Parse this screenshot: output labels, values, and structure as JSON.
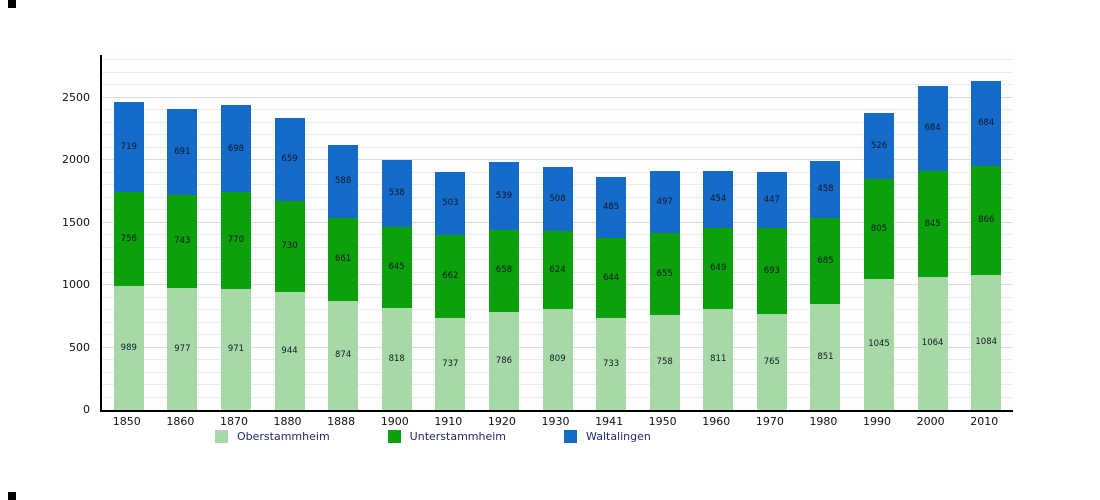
{
  "chart_data": {
    "type": "bar",
    "stacked": true,
    "title": "",
    "xlabel": "",
    "ylabel": "",
    "ylim": [
      0,
      2840
    ],
    "yticks": [
      0,
      500,
      1000,
      1500,
      2000,
      2500
    ],
    "grid": true,
    "legend_position": "bottom",
    "categories": [
      "1850",
      "1860",
      "1870",
      "1880",
      "1888",
      "1900",
      "1910",
      "1920",
      "1930",
      "1941",
      "1950",
      "1960",
      "1970",
      "1980",
      "1990",
      "2000",
      "2010"
    ],
    "series": [
      {
        "name": "Oberstammheim",
        "color": "#a6d9a6",
        "values": [
          989,
          977,
          971,
          944,
          874,
          818,
          737,
          786,
          809,
          733,
          758,
          811,
          765,
          851,
          1045,
          1064,
          1084
        ]
      },
      {
        "name": "Unterstammheim",
        "color": "#0ca00c",
        "values": [
          756,
          743,
          770,
          730,
          661,
          645,
          662,
          658,
          624,
          644,
          655,
          649,
          693,
          685,
          805,
          845,
          866
        ]
      },
      {
        "name": "Waltalingen",
        "color": "#1569c7",
        "values": [
          719,
          691,
          698,
          659,
          588,
          538,
          503,
          539,
          508,
          485,
          497,
          454,
          447,
          458,
          526,
          684,
          684
        ]
      }
    ]
  }
}
